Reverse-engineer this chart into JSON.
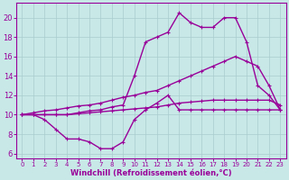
{
  "bg_color": "#c8e8e8",
  "line_color": "#990099",
  "grid_color": "#aacccc",
  "xlabel": "Windchill (Refroidissement éolien,°C)",
  "xlim": [
    -0.5,
    23.5
  ],
  "ylim": [
    5.5,
    21.5
  ],
  "yticks": [
    6,
    8,
    10,
    12,
    14,
    16,
    18,
    20
  ],
  "xticks": [
    0,
    1,
    2,
    3,
    4,
    5,
    6,
    7,
    8,
    9,
    10,
    11,
    12,
    13,
    14,
    15,
    16,
    17,
    18,
    19,
    20,
    21,
    22,
    23
  ],
  "series": [
    {
      "x": [
        0,
        1,
        2,
        3,
        4,
        5,
        6,
        7,
        8,
        9,
        10,
        11,
        12,
        13,
        14,
        15,
        16,
        17,
        18,
        19,
        20,
        21,
        22,
        23
      ],
      "y": [
        10,
        10,
        9.5,
        8.5,
        7.5,
        7.5,
        7.2,
        6.5,
        6.5,
        7.2,
        9.5,
        10.5,
        11.2,
        12,
        10.5,
        10.5,
        10.5,
        10.5,
        10.5,
        10.5,
        10.5,
        10.5,
        10.5,
        10.5
      ],
      "marker": true,
      "linewidth": 1.0
    },
    {
      "x": [
        0,
        1,
        2,
        3,
        4,
        5,
        6,
        7,
        8,
        9,
        10,
        11,
        12,
        13,
        14,
        15,
        16,
        17,
        18,
        19,
        20,
        21,
        22,
        23
      ],
      "y": [
        10,
        10,
        10,
        10,
        10,
        10.1,
        10.2,
        10.3,
        10.4,
        10.5,
        10.6,
        10.7,
        10.8,
        11,
        11.2,
        11.3,
        11.4,
        11.5,
        11.5,
        11.5,
        11.5,
        11.5,
        11.5,
        11.0
      ],
      "marker": true,
      "linewidth": 1.0
    },
    {
      "x": [
        0,
        1,
        2,
        3,
        4,
        5,
        6,
        7,
        8,
        9,
        10,
        11,
        12,
        13,
        14,
        15,
        16,
        17,
        18,
        19,
        20,
        21,
        22,
        23
      ],
      "y": [
        10,
        10.2,
        10.4,
        10.5,
        10.7,
        10.9,
        11.0,
        11.2,
        11.5,
        11.8,
        12.0,
        12.3,
        12.5,
        13.0,
        13.5,
        14.0,
        14.5,
        15.0,
        15.5,
        16.0,
        15.5,
        15.0,
        13.0,
        10.5
      ],
      "marker": true,
      "linewidth": 1.0
    },
    {
      "x": [
        0,
        1,
        2,
        3,
        4,
        5,
        6,
        7,
        8,
        9,
        10,
        11,
        12,
        13,
        14,
        15,
        16,
        17,
        18,
        19,
        20,
        21,
        22,
        23
      ],
      "y": [
        10,
        10,
        10,
        10,
        10,
        10.2,
        10.4,
        10.5,
        10.8,
        11.0,
        14.0,
        17.5,
        18,
        18.5,
        20.5,
        19.5,
        19.0,
        19.0,
        20,
        20,
        17.5,
        13.0,
        12.0,
        10.5
      ],
      "marker": true,
      "linewidth": 1.0
    }
  ]
}
